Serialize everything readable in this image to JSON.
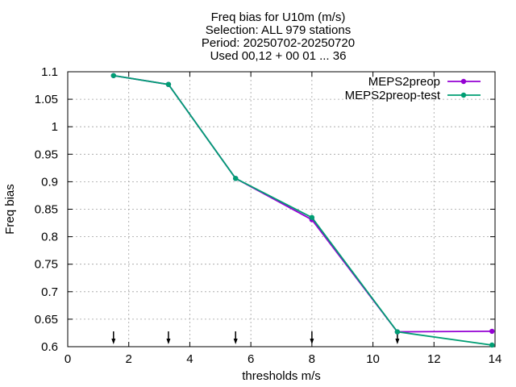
{
  "chart_data": {
    "type": "line",
    "title_lines": [
      "Freq bias  for U10m (m/s)",
      "Selection: ALL    979 stations",
      "Period: 20250702-20250720",
      "Used 00,12 + 00 01 ... 36"
    ],
    "xlabel": "thresholds m/s",
    "ylabel": "Freq bias",
    "xlim": [
      0,
      14
    ],
    "ylim": [
      0.6,
      1.1
    ],
    "xticks": [
      0,
      2,
      4,
      6,
      8,
      10,
      12,
      14
    ],
    "yticks": [
      0.6,
      0.65,
      0.7,
      0.75,
      0.8,
      0.85,
      0.9,
      0.95,
      1,
      1.05,
      1.1
    ],
    "xtick_labels": [
      "0",
      "2",
      "4",
      "6",
      "8",
      "10",
      "12",
      "14"
    ],
    "ytick_labels": [
      "0.6",
      "0.65",
      "0.7",
      "0.75",
      "0.8",
      "0.85",
      "0.9",
      "0.95",
      "1",
      "1.05",
      "1.1"
    ],
    "grid": true,
    "legend_position": "top-right",
    "series": [
      {
        "name": "MEPS2preop",
        "color": "#9400d3",
        "x": [
          1.5,
          3.3,
          5.5,
          8,
          10.8,
          13.9
        ],
        "y": [
          1.093,
          1.077,
          0.906,
          0.831,
          0.627,
          0.628
        ]
      },
      {
        "name": "MEPS2preop-test",
        "color": "#009e73",
        "x": [
          1.5,
          3.3,
          5.5,
          8,
          10.8,
          13.9
        ],
        "y": [
          1.093,
          1.077,
          0.906,
          0.835,
          0.627,
          0.603
        ]
      }
    ],
    "arrow_marks_x": [
      1.5,
      3.3,
      5.5,
      8,
      10.8
    ]
  }
}
